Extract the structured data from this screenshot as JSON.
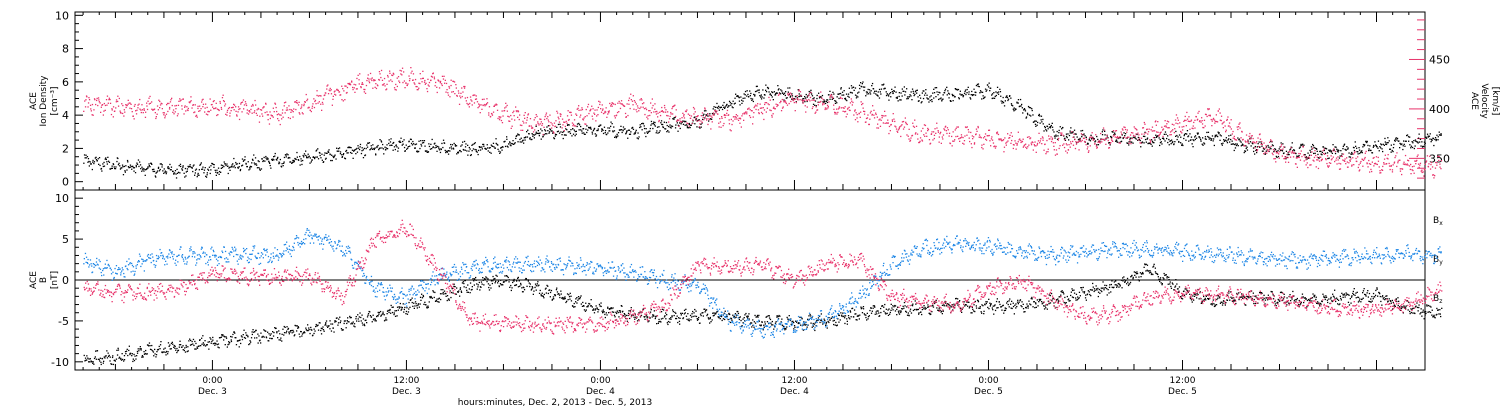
{
  "chart_data": [
    {
      "type": "scatter",
      "panel": "top",
      "ylabel_left": [
        "ACE",
        "Ion Density",
        "[cm⁻³]"
      ],
      "ylabel_right": [
        "ACE",
        "Velocity",
        "[km/s]"
      ],
      "ylim_left": [
        -0.5,
        10.2
      ],
      "ylim_right": [
        318,
        498
      ],
      "yticks_left": [
        0,
        2,
        4,
        6,
        8,
        10
      ],
      "yticks_right": [
        350,
        400,
        450
      ],
      "colors": {
        "density": "#000000",
        "velocity": "#e8336b"
      },
      "series": [
        {
          "name": "Ion Density",
          "axis": "left",
          "color": "#000000",
          "x": [
            0,
            2,
            4,
            6,
            8,
            10,
            12,
            14,
            16,
            18,
            20,
            22,
            24,
            26,
            28,
            30,
            32,
            34,
            36,
            38,
            40,
            42,
            44,
            46,
            48,
            50,
            52,
            54,
            56,
            58,
            60,
            62,
            64,
            66,
            68,
            70,
            72,
            74,
            76,
            78,
            80,
            82,
            84
          ],
          "y": [
            1.3,
            1.0,
            0.8,
            0.7,
            0.8,
            1.1,
            1.3,
            1.5,
            1.7,
            2.1,
            2.3,
            2.1,
            2.0,
            2.2,
            3.0,
            3.1,
            3.2,
            3.0,
            3.4,
            3.6,
            4.8,
            5.5,
            5.2,
            5.0,
            5.6,
            5.4,
            5.2,
            5.3,
            5.5,
            4.5,
            3.0,
            2.7,
            2.6,
            2.5,
            2.6,
            2.7,
            2.2,
            1.9,
            1.8,
            1.9,
            2.2,
            2.4,
            2.6
          ]
        },
        {
          "name": "Velocity",
          "axis": "right",
          "color": "#e8336b",
          "x": [
            0,
            2,
            4,
            6,
            8,
            10,
            12,
            14,
            16,
            18,
            20,
            22,
            24,
            26,
            28,
            30,
            32,
            34,
            36,
            38,
            40,
            42,
            44,
            46,
            48,
            50,
            52,
            54,
            56,
            58,
            60,
            62,
            64,
            66,
            68,
            70,
            72,
            74,
            76,
            78,
            80,
            82,
            84
          ],
          "y": [
            405,
            403,
            402,
            403,
            404,
            400,
            395,
            405,
            420,
            430,
            432,
            428,
            410,
            395,
            385,
            390,
            400,
            405,
            395,
            392,
            390,
            400,
            410,
            405,
            398,
            385,
            375,
            375,
            370,
            368,
            365,
            368,
            372,
            378,
            385,
            392,
            370,
            355,
            350,
            348,
            346,
            344,
            342
          ]
        }
      ]
    },
    {
      "type": "scatter",
      "panel": "bottom",
      "ylabel_left": [
        "ACE",
        "B",
        "[nT]"
      ],
      "ylim": [
        -11,
        11
      ],
      "yticks": [
        -10,
        -5,
        0,
        5,
        10
      ],
      "legend": {
        "placement": "right",
        "entries": [
          "Bx",
          "By",
          "Bz"
        ]
      },
      "colors": {
        "Bx": "#000000",
        "By": "#1f87e6",
        "Bz": "#e8336b"
      },
      "series": [
        {
          "name": "Bx",
          "color": "#000000",
          "x": [
            0,
            2,
            4,
            6,
            8,
            10,
            12,
            14,
            16,
            18,
            20,
            22,
            24,
            26,
            28,
            30,
            32,
            34,
            36,
            38,
            40,
            42,
            44,
            46,
            48,
            50,
            52,
            54,
            56,
            58,
            60,
            62,
            64,
            66,
            68,
            70,
            72,
            74,
            76,
            78,
            80,
            82,
            84
          ],
          "y": [
            -9.6,
            -9.3,
            -8.6,
            -8.0,
            -7.5,
            -7.0,
            -6.5,
            -6.0,
            -5.2,
            -4.5,
            -3.2,
            -2.0,
            -0.5,
            0.0,
            -1.0,
            -2.2,
            -3.5,
            -4.3,
            -4.5,
            -4.2,
            -4.5,
            -5.0,
            -5.3,
            -5.0,
            -4.0,
            -3.5,
            -3.5,
            -3.0,
            -3.2,
            -3.0,
            -2.5,
            -1.5,
            -0.5,
            1.5,
            -1.5,
            -2.5,
            -2.0,
            -2.2,
            -2.5,
            -2.0,
            -1.8,
            -3.5,
            -4.0
          ]
        },
        {
          "name": "By",
          "color": "#1f87e6",
          "x": [
            0,
            2,
            4,
            6,
            8,
            10,
            12,
            14,
            16,
            18,
            20,
            22,
            24,
            26,
            28,
            30,
            32,
            34,
            36,
            38,
            40,
            42,
            44,
            46,
            48,
            50,
            52,
            54,
            56,
            58,
            60,
            62,
            64,
            66,
            68,
            70,
            72,
            74,
            76,
            78,
            80,
            82,
            84
          ],
          "y": [
            2.5,
            1.0,
            2.5,
            3.0,
            3.0,
            3.2,
            3.0,
            5.5,
            4.0,
            -1.0,
            -2.0,
            0.5,
            1.5,
            2.0,
            2.0,
            1.8,
            1.5,
            1.0,
            0.0,
            -0.5,
            -5.0,
            -6.0,
            -5.5,
            -4.5,
            -2.0,
            2.0,
            4.0,
            4.5,
            4.2,
            3.5,
            3.0,
            3.5,
            3.8,
            3.8,
            3.5,
            3.2,
            3.0,
            2.5,
            2.5,
            2.8,
            3.0,
            3.2,
            3.0
          ]
        },
        {
          "name": "Bz",
          "color": "#e8336b",
          "x": [
            0,
            2,
            4,
            6,
            8,
            10,
            12,
            14,
            16,
            18,
            20,
            22,
            24,
            26,
            28,
            30,
            32,
            34,
            36,
            38,
            40,
            42,
            44,
            46,
            48,
            50,
            52,
            54,
            56,
            58,
            60,
            62,
            64,
            66,
            68,
            70,
            72,
            74,
            76,
            78,
            80,
            82,
            84
          ],
          "y": [
            -1.0,
            -1.5,
            -1.5,
            -1.0,
            1.0,
            0.5,
            0.5,
            0.5,
            -2.0,
            5.0,
            6.5,
            1.0,
            -5.0,
            -5.3,
            -5.4,
            -5.4,
            -5.2,
            -4.5,
            -3.0,
            2.0,
            1.5,
            2.0,
            0.0,
            2.0,
            2.5,
            -2.0,
            -2.5,
            -3.0,
            -1.0,
            0.0,
            -2.5,
            -4.5,
            -4.0,
            -2.0,
            -1.5,
            -1.8,
            -2.0,
            -2.5,
            -3.0,
            -3.5,
            -3.5,
            -3.0,
            -1.0
          ]
        }
      ]
    }
  ],
  "time_axis": {
    "unit": "hours from 00:00 Dec. 2, 2013",
    "range": [
      15.5,
      99
    ],
    "major_ticks": [
      {
        "hour": 24,
        "time": "0:00",
        "date": "Dec. 3"
      },
      {
        "hour": 36,
        "time": "12:00",
        "date": "Dec. 3"
      },
      {
        "hour": 48,
        "time": "0:00",
        "date": "Dec. 4"
      },
      {
        "hour": 60,
        "time": "12:00",
        "date": "Dec. 4"
      },
      {
        "hour": 72,
        "time": "0:00",
        "date": "Dec. 5"
      },
      {
        "hour": 84,
        "time": "12:00",
        "date": "Dec. 5"
      }
    ],
    "xlabel": "hours:minutes, Dec.  2, 2013 - Dec.  5, 2013"
  }
}
